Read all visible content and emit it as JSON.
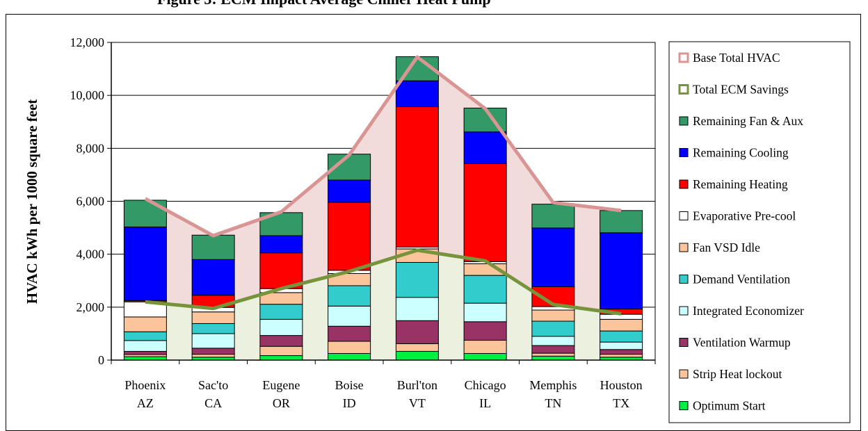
{
  "chart_data": {
    "type": "bar",
    "title": "Figure 3: ECM Impact Average Chiller Heat Pump",
    "ylabel": "HVAC kWh per 1000 square feet",
    "ylim": [
      0,
      12000
    ],
    "yticks": [
      0,
      2000,
      4000,
      6000,
      8000,
      10000,
      12000
    ],
    "ytick_labels": [
      "0",
      "2,000",
      "4,000",
      "6,000",
      "8,000",
      "10,000",
      "12,000"
    ],
    "grid": true,
    "legend_position": "right",
    "categories": [
      [
        "Phoenix",
        "AZ"
      ],
      [
        "Sac'to",
        "CA"
      ],
      [
        "Eugene",
        "OR"
      ],
      [
        "Boise",
        "ID"
      ],
      [
        "Burl'ton",
        "VT"
      ],
      [
        "Chicago",
        "IL"
      ],
      [
        "Memphis",
        "TN"
      ],
      [
        "Houston",
        "TX"
      ]
    ],
    "stacked_series": [
      {
        "name": "Optimum Start",
        "color": "#00ee44",
        "values": [
          130,
          110,
          170,
          250,
          330,
          250,
          150,
          110
        ]
      },
      {
        "name": "Strip Heat lockout",
        "color": "#fcc49a",
        "values": [
          80,
          110,
          350,
          460,
          290,
          500,
          110,
          110
        ]
      },
      {
        "name": "Ventilation Warmup",
        "color": "#993366",
        "values": [
          120,
          230,
          410,
          570,
          870,
          700,
          290,
          180
        ]
      },
      {
        "name": "Integrated Economizer",
        "color": "#ccffff",
        "values": [
          410,
          550,
          610,
          760,
          880,
          700,
          350,
          280
        ]
      },
      {
        "name": "Demand Ventilation",
        "color": "#33cccc",
        "values": [
          330,
          380,
          570,
          770,
          1320,
          1050,
          570,
          420
        ]
      },
      {
        "name": "Fan VSD Idle",
        "color": "#fcc49a",
        "values": [
          560,
          440,
          440,
          460,
          510,
          440,
          420,
          440
        ]
      },
      {
        "name": "Evaporative Pre-cool",
        "color": "#ffffff",
        "values": [
          570,
          170,
          150,
          120,
          70,
          80,
          130,
          190
        ]
      },
      {
        "name": "Remaining Heating",
        "color": "#ff0000",
        "values": [
          50,
          460,
          1350,
          2570,
          5300,
          3700,
          750,
          200
        ]
      },
      {
        "name": "Remaining Cooling",
        "color": "#0000ff",
        "values": [
          2780,
          1350,
          650,
          840,
          980,
          1200,
          2220,
          2880
        ]
      },
      {
        "name": "Remaining Fan & Aux",
        "color": "#339966",
        "values": [
          1010,
          920,
          870,
          980,
          910,
          900,
          900,
          840
        ]
      }
    ],
    "line_series": [
      {
        "name": "Base Total HVAC",
        "color": "#d99594",
        "fill": "#f2dcdb",
        "values": [
          6100,
          4700,
          5600,
          7750,
          11450,
          9500,
          5950,
          5650
        ]
      },
      {
        "name": "Total ECM Savings",
        "color": "#77933c",
        "fill": "#ebf1de",
        "values": [
          2200,
          1950,
          2700,
          3350,
          4150,
          3750,
          2100,
          1750
        ]
      }
    ],
    "legend_order": [
      "Base Total HVAC",
      "Total ECM Savings",
      "Remaining Fan & Aux",
      "Remaining Cooling",
      "Remaining Heating",
      "Evaporative Pre-cool",
      "Fan VSD Idle",
      "Demand Ventilation",
      "Integrated Economizer",
      "Ventilation Warmup",
      "Strip Heat lockout",
      "Optimum Start"
    ],
    "colors": {
      "axis": "#000000",
      "grid": "#000000"
    }
  }
}
